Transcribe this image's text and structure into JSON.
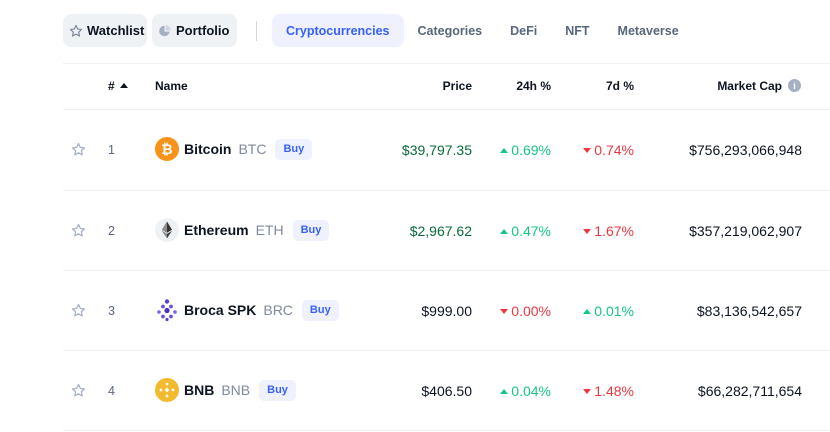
{
  "nav": {
    "watchlist_label": "Watchlist",
    "portfolio_label": "Portfolio",
    "tabs": [
      {
        "label": "Cryptocurrencies",
        "active": true
      },
      {
        "label": "Categories",
        "active": false
      },
      {
        "label": "DeFi",
        "active": false
      },
      {
        "label": "NFT",
        "active": false
      },
      {
        "label": "Metaverse",
        "active": false
      }
    ]
  },
  "table": {
    "headers": {
      "rank": "#",
      "name": "Name",
      "price": "Price",
      "change_24h": "24h %",
      "change_7d": "7d %",
      "market_cap": "Market Cap"
    },
    "buy_label": "Buy",
    "rows": [
      {
        "rank": "1",
        "name": "Bitcoin",
        "symbol": "BTC",
        "icon": "bitcoin-icon",
        "price": "$39,797.35",
        "price_color": "green",
        "change_24h": "0.69%",
        "dir_24h": "up",
        "change_7d": "0.74%",
        "dir_7d": "down",
        "market_cap": "$756,293,066,948"
      },
      {
        "rank": "2",
        "name": "Ethereum",
        "symbol": "ETH",
        "icon": "ethereum-icon",
        "price": "$2,967.62",
        "price_color": "green",
        "change_24h": "0.47%",
        "dir_24h": "up",
        "change_7d": "1.67%",
        "dir_7d": "down",
        "market_cap": "$357,219,062,907"
      },
      {
        "rank": "3",
        "name": "Broca SPK",
        "symbol": "BRC",
        "icon": "broca-icon",
        "price": "$999.00",
        "price_color": "default",
        "change_24h": "0.00%",
        "dir_24h": "down",
        "change_7d": "0.01%",
        "dir_7d": "up",
        "market_cap": "$83,136,542,657"
      },
      {
        "rank": "4",
        "name": "BNB",
        "symbol": "BNB",
        "icon": "bnb-icon",
        "price": "$406.50",
        "price_color": "default",
        "change_24h": "0.04%",
        "dir_24h": "up",
        "change_7d": "1.48%",
        "dir_7d": "down",
        "market_cap": "$66,282,711,654"
      }
    ]
  },
  "colors": {
    "accent": "#3861fb",
    "up": "#16c784",
    "down": "#ea3943",
    "bitcoin": "#f7931a",
    "bnb": "#f3ba2f",
    "broca": "#5b3fd1"
  }
}
